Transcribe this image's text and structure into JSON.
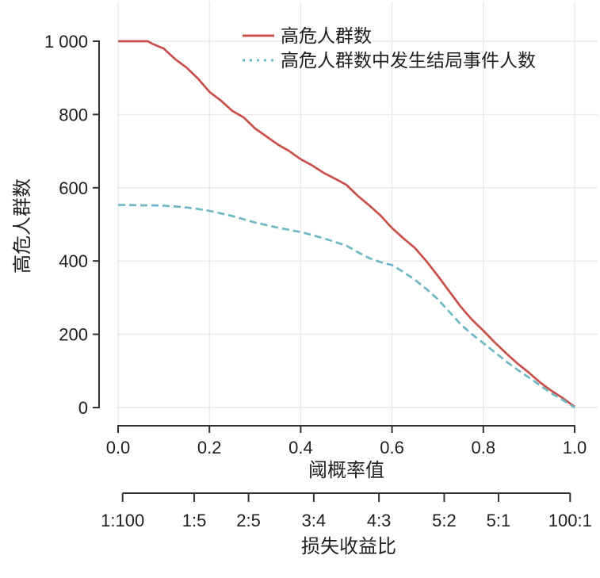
{
  "figure": {
    "kind": "clinical-impact-curve",
    "background": "#ffffff"
  },
  "chart_data": {
    "type": "line",
    "title": "",
    "xlabel": "阈概率值",
    "ylabel": "高危人群数",
    "x2label": "损失收益比",
    "xlim": [
      0.0,
      1.0
    ],
    "ylim": [
      0,
      1000
    ],
    "grid": true,
    "legend_position": "top-center-inside",
    "x_tick_labels": [
      "0.0",
      "0.2",
      "0.4",
      "0.6",
      "0.8",
      "1.0"
    ],
    "x_tick_values": [
      0.0,
      0.2,
      0.4,
      0.6,
      0.8,
      1.0
    ],
    "y_tick_labels": [
      "0",
      "200",
      "400",
      "600",
      "800",
      "1 000"
    ],
    "y_tick_values": [
      0,
      200,
      400,
      600,
      800,
      1000
    ],
    "x2_ticks": [
      {
        "label": "1:100",
        "value": 0.0099
      },
      {
        "label": "1:5",
        "value": 0.1667
      },
      {
        "label": "2:5",
        "value": 0.2857
      },
      {
        "label": "3:4",
        "value": 0.4286
      },
      {
        "label": "4:3",
        "value": 0.5714
      },
      {
        "label": "5:2",
        "value": 0.7143
      },
      {
        "label": "5:1",
        "value": 0.8333
      },
      {
        "label": "100:1",
        "value": 0.9901
      }
    ],
    "x": [
      0.0,
      0.025,
      0.05,
      0.065,
      0.075,
      0.1,
      0.125,
      0.15,
      0.175,
      0.2,
      0.225,
      0.25,
      0.275,
      0.3,
      0.325,
      0.35,
      0.375,
      0.4,
      0.425,
      0.45,
      0.475,
      0.5,
      0.525,
      0.55,
      0.575,
      0.6,
      0.625,
      0.65,
      0.675,
      0.7,
      0.725,
      0.75,
      0.775,
      0.8,
      0.825,
      0.85,
      0.875,
      0.9,
      0.925,
      0.95,
      0.975,
      1.0
    ],
    "series": [
      {
        "name": "高危人群数",
        "color": "#C8504B",
        "linestyle": "solid",
        "values": [
          1000,
          1000,
          1000,
          1000,
          993,
          980,
          951,
          928,
          898,
          862,
          838,
          810,
          792,
          762,
          740,
          718,
          700,
          678,
          661,
          641,
          625,
          608,
          578,
          552,
          524,
          490,
          462,
          436,
          400,
          360,
          318,
          276,
          240,
          210,
          178,
          148,
          120,
          95,
          68,
          45,
          25,
          2
        ]
      },
      {
        "name": "高危人群数中发生结局事件人数",
        "color": "#6EB8C6",
        "linestyle": "dashed",
        "values": [
          553,
          553,
          552,
          552,
          552,
          551,
          549,
          546,
          542,
          537,
          530,
          523,
          514,
          505,
          498,
          491,
          485,
          479,
          471,
          462,
          452,
          442,
          424,
          408,
          397,
          389,
          370,
          349,
          324,
          296,
          262,
          228,
          200,
          176,
          151,
          126,
          103,
          82,
          60,
          38,
          20,
          0
        ]
      }
    ]
  },
  "colors": {
    "grid": "#e9e9e9",
    "axis": "#333333",
    "text": "#1f1f1f",
    "series_red": "#C8504B",
    "series_blue": "#6EB8C6"
  }
}
